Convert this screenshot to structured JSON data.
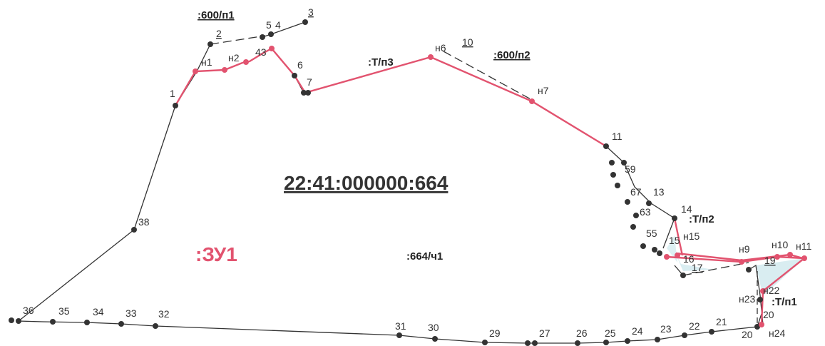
{
  "parcel": {
    "cadastral_number": "22:41:000000:664",
    "new_parcel_label": ":ЗУ1",
    "part_label": ":664/ч1"
  },
  "tags": {
    "t600_p1": ":600/п1",
    "t600_p2": ":600/п2",
    "tp3": ":Т/п3",
    "tp2": ":Т/п2",
    "tp1": ":Т/п1"
  },
  "points": {
    "p1": "1",
    "p2": "2",
    "p3": "3",
    "p4": "4",
    "p5": "5",
    "p43": "43",
    "p6": "6",
    "p7": "7",
    "p10": "10",
    "p11": "11",
    "p59": "59",
    "p67": "67",
    "p13": "13",
    "p63": "63",
    "p14": "14",
    "p55": "55",
    "p15": "15",
    "p16": "16",
    "p17": "17",
    "p19": "19",
    "p20a": "20",
    "p20b": "20",
    "p21": "21",
    "p22": "22",
    "p23": "23",
    "p24": "24",
    "p25": "25",
    "p26": "26",
    "p27": "27",
    "p29": "29",
    "p30": "30",
    "p31": "31",
    "p32": "32",
    "p33": "33",
    "p34": "34",
    "p35": "35",
    "p36": "36",
    "p38": "38",
    "n1": "н1",
    "n2": "н2",
    "n6": "н6",
    "n7": "н7",
    "n9": "н9",
    "n10": "н10",
    "n11": "н11",
    "n15": "н15",
    "n22": "н22",
    "n23": "н23",
    "n24": "н24"
  },
  "colors": {
    "boundary": "#333333",
    "new_boundary": "#e2536f",
    "zu_label": "#e2536f",
    "fill": "#cfe9ee"
  }
}
